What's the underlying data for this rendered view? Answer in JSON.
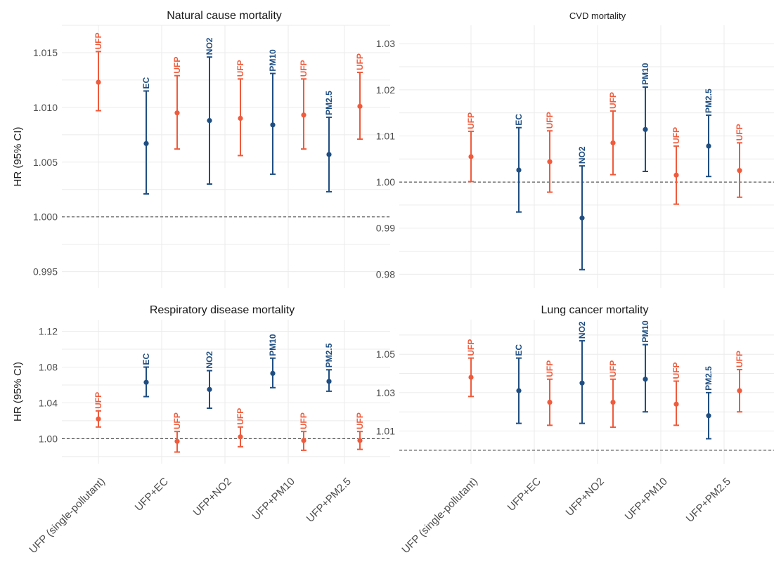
{
  "colors": {
    "ufp": "#EF5B3C",
    "copollutant": "#1F4E82"
  },
  "chart_data": {
    "type": "errorbar",
    "ylabel": "HR (95% CI)",
    "categories": [
      "UFP (single-pollutant)",
      "UFP+EC",
      "UFP+NO2",
      "UFP+PM10",
      "UFP+PM2.5"
    ],
    "reference_line": 1.0,
    "panels": [
      {
        "title": "Natural cause mortality",
        "yticks": [
          "0.995",
          "1.000",
          "1.005",
          "1.010",
          "1.015"
        ],
        "ylim": [
          0.9935,
          1.0175
        ],
        "points": [
          {
            "category": 0,
            "label": "UFP",
            "pollutant": "ufp",
            "hr": 1.0123,
            "lo": 1.0097,
            "hi": 1.0151
          },
          {
            "category": 1,
            "label": "EC",
            "pollutant": "copollutant",
            "hr": 1.0067,
            "lo": 1.0021,
            "hi": 1.0115
          },
          {
            "category": 1,
            "label": "UFP",
            "pollutant": "ufp",
            "hr": 1.0095,
            "lo": 1.0062,
            "hi": 1.0129
          },
          {
            "category": 2,
            "label": "NO2",
            "pollutant": "copollutant",
            "hr": 1.0088,
            "lo": 1.003,
            "hi": 1.0146
          },
          {
            "category": 2,
            "label": "UFP",
            "pollutant": "ufp",
            "hr": 1.009,
            "lo": 1.0056,
            "hi": 1.0126
          },
          {
            "category": 3,
            "label": "PM10",
            "pollutant": "copollutant",
            "hr": 1.0084,
            "lo": 1.0039,
            "hi": 1.0131
          },
          {
            "category": 3,
            "label": "UFP",
            "pollutant": "ufp",
            "hr": 1.0093,
            "lo": 1.0062,
            "hi": 1.0126
          },
          {
            "category": 4,
            "label": "PM2.5",
            "pollutant": "copollutant",
            "hr": 1.0057,
            "lo": 1.0023,
            "hi": 1.0091
          },
          {
            "category": 4,
            "label": "UFP",
            "pollutant": "ufp",
            "hr": 1.0101,
            "lo": 1.0071,
            "hi": 1.0132
          }
        ]
      },
      {
        "title": "CVD mortality",
        "yticks": [
          "0.98",
          "0.99",
          "1.00",
          "1.01",
          "1.02",
          "1.03"
        ],
        "ylim": [
          0.977,
          1.034
        ],
        "points": [
          {
            "category": 0,
            "label": "UFP",
            "pollutant": "ufp",
            "hr": 1.0055,
            "lo": 1.0001,
            "hi": 1.011
          },
          {
            "category": 1,
            "label": "EC",
            "pollutant": "copollutant",
            "hr": 1.0026,
            "lo": 0.9935,
            "hi": 1.0118
          },
          {
            "category": 1,
            "label": "UFP",
            "pollutant": "ufp",
            "hr": 1.0044,
            "lo": 0.9978,
            "hi": 1.0111
          },
          {
            "category": 2,
            "label": "NO2",
            "pollutant": "copollutant",
            "hr": 0.9922,
            "lo": 0.981,
            "hi": 1.0035
          },
          {
            "category": 2,
            "label": "UFP",
            "pollutant": "ufp",
            "hr": 1.0085,
            "lo": 1.0016,
            "hi": 1.0154
          },
          {
            "category": 3,
            "label": "PM10",
            "pollutant": "copollutant",
            "hr": 1.0114,
            "lo": 1.0023,
            "hi": 1.0206
          },
          {
            "category": 3,
            "label": "UFP",
            "pollutant": "ufp",
            "hr": 1.0015,
            "lo": 0.9952,
            "hi": 1.0078
          },
          {
            "category": 4,
            "label": "PM2.5",
            "pollutant": "copollutant",
            "hr": 1.0078,
            "lo": 1.0012,
            "hi": 1.0145
          },
          {
            "category": 4,
            "label": "UFP",
            "pollutant": "ufp",
            "hr": 1.0025,
            "lo": 0.9967,
            "hi": 1.0085
          }
        ]
      },
      {
        "title": "Respiratory disease mortality",
        "yticks": [
          "1.00",
          "1.04",
          "1.08",
          "1.12"
        ],
        "ylim": [
          0.972,
          1.133
        ],
        "points": [
          {
            "category": 0,
            "label": "UFP",
            "pollutant": "ufp",
            "hr": 1.022,
            "lo": 1.013,
            "hi": 1.031
          },
          {
            "category": 1,
            "label": "EC",
            "pollutant": "copollutant",
            "hr": 1.063,
            "lo": 1.047,
            "hi": 1.08
          },
          {
            "category": 1,
            "label": "UFP",
            "pollutant": "ufp",
            "hr": 0.997,
            "lo": 0.985,
            "hi": 1.008
          },
          {
            "category": 2,
            "label": "NO2",
            "pollutant": "copollutant",
            "hr": 1.055,
            "lo": 1.034,
            "hi": 1.076
          },
          {
            "category": 2,
            "label": "UFP",
            "pollutant": "ufp",
            "hr": 1.002,
            "lo": 0.991,
            "hi": 1.013
          },
          {
            "category": 3,
            "label": "PM10",
            "pollutant": "copollutant",
            "hr": 1.073,
            "lo": 1.057,
            "hi": 1.09
          },
          {
            "category": 3,
            "label": "UFP",
            "pollutant": "ufp",
            "hr": 0.998,
            "lo": 0.987,
            "hi": 1.008
          },
          {
            "category": 4,
            "label": "PM2.5",
            "pollutant": "copollutant",
            "hr": 1.064,
            "lo": 1.053,
            "hi": 1.077
          },
          {
            "category": 4,
            "label": "UFP",
            "pollutant": "ufp",
            "hr": 0.998,
            "lo": 0.988,
            "hi": 1.008
          }
        ]
      },
      {
        "title": "Lung cancer mortality",
        "yticks": [
          "1.01",
          "1.03",
          "1.05"
        ],
        "ylim": [
          0.993,
          1.068
        ],
        "points": [
          {
            "category": 0,
            "label": "UFP",
            "pollutant": "ufp",
            "hr": 1.038,
            "lo": 1.028,
            "hi": 1.048
          },
          {
            "category": 1,
            "label": "EC",
            "pollutant": "copollutant",
            "hr": 1.031,
            "lo": 1.014,
            "hi": 1.048
          },
          {
            "category": 1,
            "label": "UFP",
            "pollutant": "ufp",
            "hr": 1.025,
            "lo": 1.013,
            "hi": 1.037
          },
          {
            "category": 2,
            "label": "NO2",
            "pollutant": "copollutant",
            "hr": 1.035,
            "lo": 1.014,
            "hi": 1.057
          },
          {
            "category": 2,
            "label": "UFP",
            "pollutant": "ufp",
            "hr": 1.025,
            "lo": 1.012,
            "hi": 1.037
          },
          {
            "category": 3,
            "label": "PM10",
            "pollutant": "copollutant",
            "hr": 1.037,
            "lo": 1.02,
            "hi": 1.055
          },
          {
            "category": 3,
            "label": "UFP",
            "pollutant": "ufp",
            "hr": 1.024,
            "lo": 1.013,
            "hi": 1.036
          },
          {
            "category": 4,
            "label": "PM2.5",
            "pollutant": "copollutant",
            "hr": 1.018,
            "lo": 1.006,
            "hi": 1.03
          },
          {
            "category": 4,
            "label": "UFP",
            "pollutant": "ufp",
            "hr": 1.031,
            "lo": 1.02,
            "hi": 1.042
          }
        ]
      }
    ]
  }
}
